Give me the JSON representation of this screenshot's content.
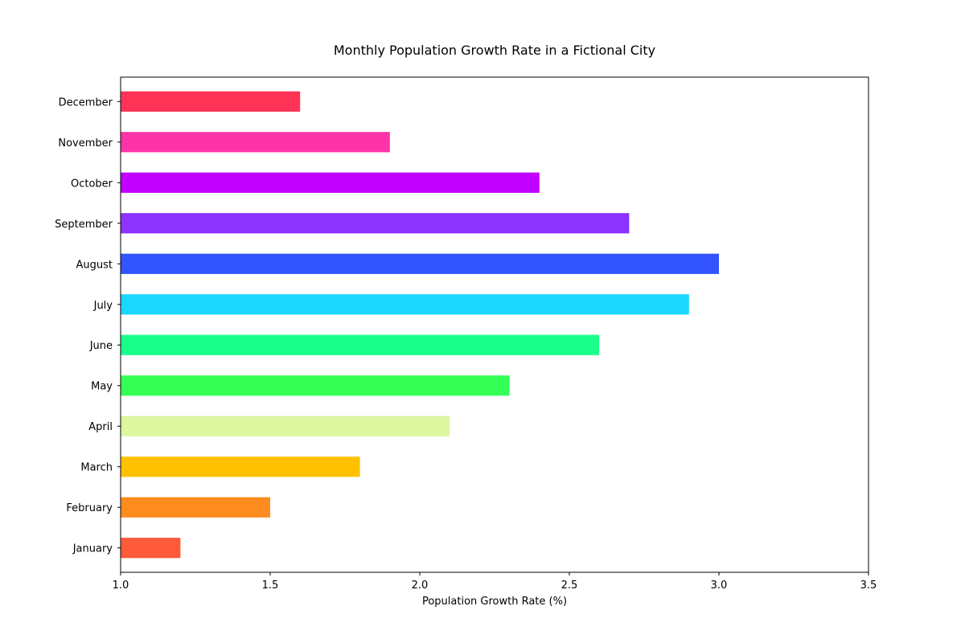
{
  "chart_data": {
    "type": "bar",
    "orientation": "horizontal",
    "title": "Monthly Population Growth Rate in a Fictional City",
    "xlabel": "Population Growth Rate (%)",
    "ylabel": "",
    "xlim": [
      1.0,
      3.5
    ],
    "xticks": [
      "1.0",
      "1.5",
      "2.0",
      "2.5",
      "3.0",
      "3.5"
    ],
    "grid": false,
    "categories": [
      "January",
      "February",
      "March",
      "April",
      "May",
      "June",
      "July",
      "August",
      "September",
      "October",
      "November",
      "December"
    ],
    "values": [
      1.2,
      1.5,
      1.8,
      2.1,
      2.3,
      2.6,
      2.9,
      3.0,
      2.7,
      2.4,
      1.9,
      1.6
    ],
    "colors": [
      "#ff5a3a",
      "#ff8c1f",
      "#ffc000",
      "#dcf7a0",
      "#33ff55",
      "#1aff8c",
      "#19d7fd",
      "#3355ff",
      "#8c33ff",
      "#c100ff",
      "#ff33a8",
      "#ff3355"
    ]
  }
}
